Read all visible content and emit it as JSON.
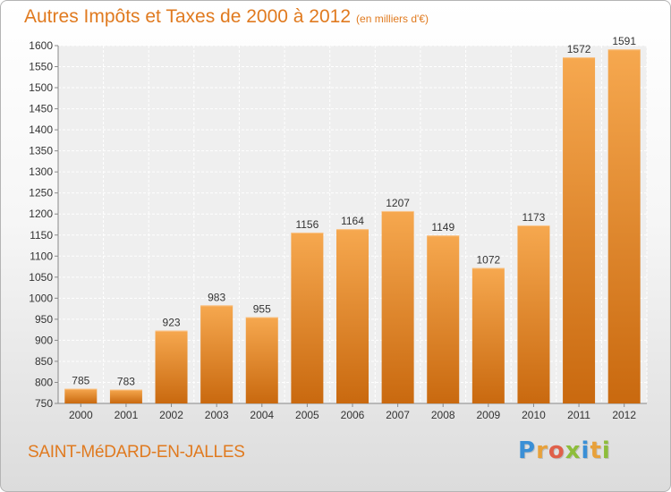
{
  "chart_data": {
    "type": "bar",
    "title": "Autres Impôts et Taxes de 2000 à 2012",
    "subtitle": "(en milliers d'€)",
    "categories": [
      "2000",
      "2001",
      "2002",
      "2003",
      "2004",
      "2005",
      "2006",
      "2007",
      "2008",
      "2009",
      "2010",
      "2011",
      "2012"
    ],
    "values": [
      785,
      783,
      923,
      983,
      955,
      1156,
      1164,
      1207,
      1149,
      1072,
      1173,
      1572,
      1591
    ],
    "ylim": [
      750,
      1600
    ],
    "yticks": [
      750,
      800,
      850,
      900,
      950,
      1000,
      1050,
      1100,
      1150,
      1200,
      1250,
      1300,
      1350,
      1400,
      1450,
      1500,
      1550,
      1600
    ],
    "grid": true,
    "xlabel": "",
    "ylabel": ""
  },
  "town_name": "SAINT-MéDARD-EN-JALLES",
  "logo": {
    "text": "Proxiti",
    "letters": [
      "P",
      "r",
      "o",
      "x",
      "i",
      "t",
      "i"
    ],
    "colors": [
      "#3a8fd6",
      "#e8a13a",
      "#e0604a",
      "#8dbd3b",
      "#3a8fd6",
      "#e8a13a",
      "#8dbd3b"
    ]
  },
  "colors": {
    "accent": "#e07a1f",
    "bar_light": "#f6a84f",
    "bar_dark": "#c9690f"
  }
}
